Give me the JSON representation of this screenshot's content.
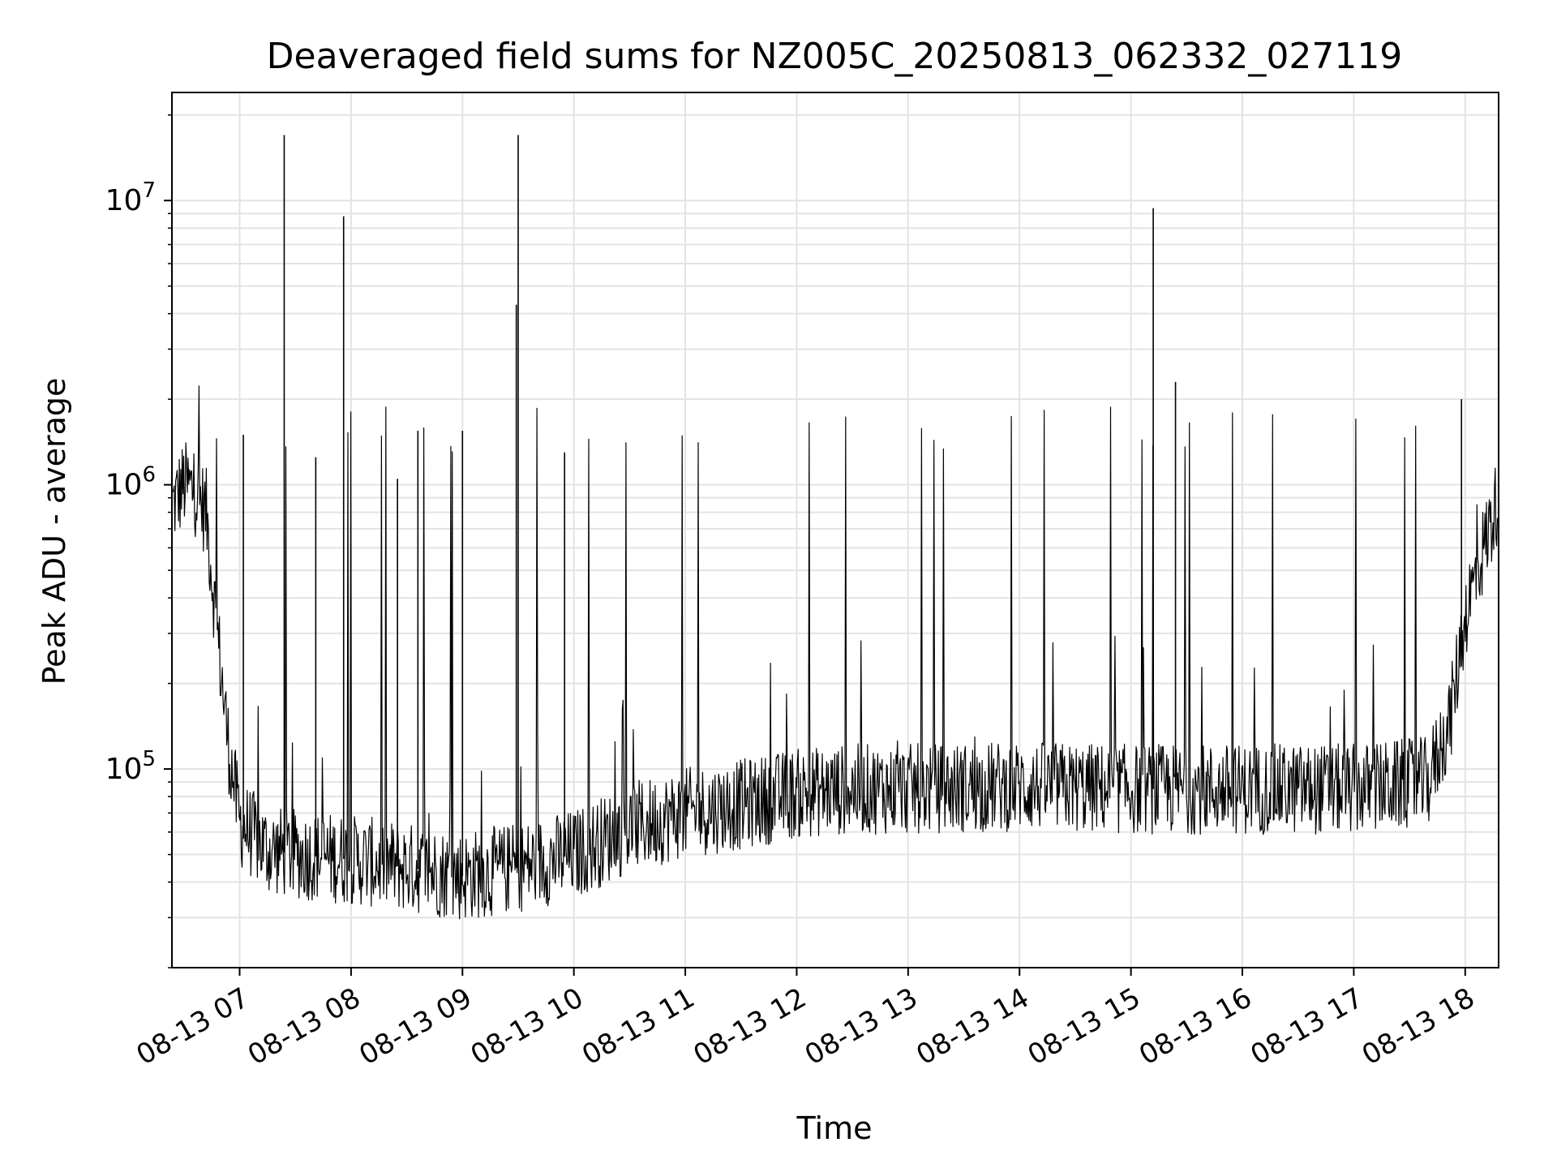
{
  "chart_data": {
    "type": "line",
    "title": "Deaveraged field sums for NZ005C_20250813_062332_027119",
    "xlabel": "Time",
    "ylabel": "Peak ADU - average",
    "yscale": "log",
    "ylim": [
      20000,
      24000000
    ],
    "xlim": [
      "2025-08-13 06:23:32",
      "2025-08-13 18:18:00"
    ],
    "grid": true,
    "line_color": "#000000",
    "x_ticks": [
      {
        "label": "08-13 07",
        "value": "2025-08-13 07:00"
      },
      {
        "label": "08-13 08",
        "value": "2025-08-13 08:00"
      },
      {
        "label": "08-13 09",
        "value": "2025-08-13 09:00"
      },
      {
        "label": "08-13 10",
        "value": "2025-08-13 10:00"
      },
      {
        "label": "08-13 11",
        "value": "2025-08-13 11:00"
      },
      {
        "label": "08-13 12",
        "value": "2025-08-13 12:00"
      },
      {
        "label": "08-13 13",
        "value": "2025-08-13 13:00"
      },
      {
        "label": "08-13 14",
        "value": "2025-08-13 14:00"
      },
      {
        "label": "08-13 15",
        "value": "2025-08-13 15:00"
      },
      {
        "label": "08-13 16",
        "value": "2025-08-13 16:00"
      },
      {
        "label": "08-13 17",
        "value": "2025-08-13 17:00"
      },
      {
        "label": "08-13 18",
        "value": "2025-08-13 18:00"
      }
    ],
    "y_ticks": [
      {
        "base": "10",
        "exp": "5",
        "value": 100000
      },
      {
        "base": "10",
        "exp": "6",
        "value": 1000000
      },
      {
        "base": "10",
        "exp": "7",
        "value": 10000000
      }
    ],
    "series": [
      {
        "values": [
          {
            "x": "2025-08-13 06:24",
            "y": 850000
          },
          {
            "x": "2025-08-13 06:30",
            "y": 1000000
          },
          {
            "x": "2025-08-13 06:36",
            "y": 950000
          },
          {
            "x": "2025-08-13 06:42",
            "y": 800000
          },
          {
            "x": "2025-08-13 06:48",
            "y": 300000
          },
          {
            "x": "2025-08-13 06:54",
            "y": 120000
          },
          {
            "x": "2025-08-13 07:00",
            "y": 65000
          },
          {
            "x": "2025-08-13 07:15",
            "y": 52000
          },
          {
            "x": "2025-08-13 07:30",
            "y": 50000
          },
          {
            "x": "2025-08-13 08:00",
            "y": 48000
          },
          {
            "x": "2025-08-13 08:30",
            "y": 45000
          },
          {
            "x": "2025-08-13 09:00",
            "y": 42000
          },
          {
            "x": "2025-08-13 09:30",
            "y": 45000
          },
          {
            "x": "2025-08-13 10:00",
            "y": 50000
          },
          {
            "x": "2025-08-13 10:30",
            "y": 62000
          },
          {
            "x": "2025-08-13 11:00",
            "y": 70000
          },
          {
            "x": "2025-08-13 11:30",
            "y": 75000
          },
          {
            "x": "2025-08-13 12:00",
            "y": 82000
          },
          {
            "x": "2025-08-13 12:30",
            "y": 85000
          },
          {
            "x": "2025-08-13 13:00",
            "y": 85000
          },
          {
            "x": "2025-08-13 14:00",
            "y": 87000
          },
          {
            "x": "2025-08-13 15:00",
            "y": 85000
          },
          {
            "x": "2025-08-13 16:00",
            "y": 85000
          },
          {
            "x": "2025-08-13 17:00",
            "y": 85000
          },
          {
            "x": "2025-08-13 17:40",
            "y": 90000
          },
          {
            "x": "2025-08-13 17:52",
            "y": 150000
          },
          {
            "x": "2025-08-13 18:00",
            "y": 350000
          },
          {
            "x": "2025-08-13 18:10",
            "y": 600000
          },
          {
            "x": "2025-08-13 18:18",
            "y": 900000
          }
        ],
        "spikes": [
          {
            "x": "2025-08-13 07:24",
            "y": 17000000
          },
          {
            "x": "2025-08-13 07:56",
            "y": 8800000
          },
          {
            "x": "2025-08-13 09:30",
            "y": 17000000
          },
          {
            "x": "2025-08-13 09:29",
            "y": 4300000
          },
          {
            "x": "2025-08-13 15:12",
            "y": 9400000
          },
          {
            "x": "2025-08-13 07:02",
            "y": 1500000
          },
          {
            "x": "2025-08-13 07:41",
            "y": 1250000
          },
          {
            "x": "2025-08-13 08:25",
            "y": 1050000
          },
          {
            "x": "2025-08-13 08:36",
            "y": 1550000
          },
          {
            "x": "2025-08-13 09:00",
            "y": 1550000
          },
          {
            "x": "2025-08-13 09:55",
            "y": 1300000
          },
          {
            "x": "2025-08-13 15:24",
            "y": 2300000
          },
          {
            "x": "2025-08-13 17:58",
            "y": 2000000
          }
        ]
      }
    ]
  }
}
